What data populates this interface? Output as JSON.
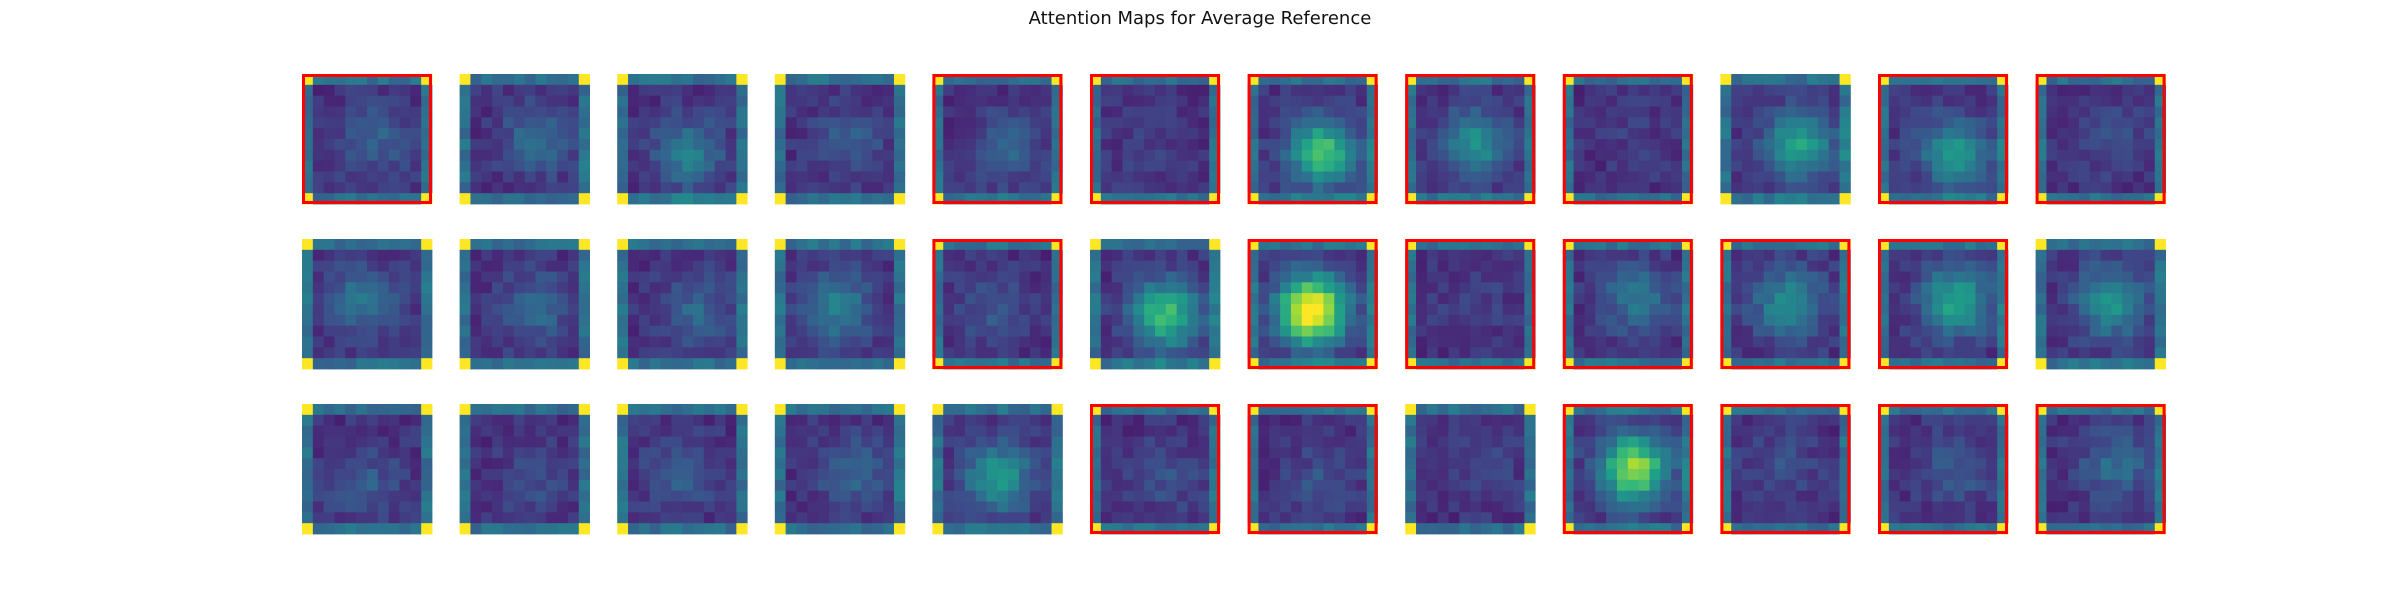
{
  "chart_data": {
    "type": "heatmap",
    "title": "Attention Maps for Average Reference",
    "rows": 3,
    "cols": 12,
    "colormap": "viridis",
    "grid": false,
    "highlight_color": "#ff0000",
    "highlighted": [
      [
        true,
        false,
        false,
        false,
        true,
        true,
        true,
        true,
        true,
        false,
        true,
        true
      ],
      [
        false,
        false,
        false,
        false,
        true,
        false,
        true,
        true,
        true,
        true,
        true,
        false
      ],
      [
        false,
        false,
        false,
        false,
        false,
        true,
        true,
        false,
        true,
        true,
        true,
        true
      ]
    ],
    "panel_peak": [
      [
        0.18,
        0.22,
        0.28,
        0.15,
        0.18,
        0.05,
        0.55,
        0.35,
        0.03,
        0.45,
        0.4,
        0.1
      ],
      [
        0.25,
        0.2,
        0.18,
        0.3,
        0.12,
        0.55,
        0.9,
        0.06,
        0.25,
        0.35,
        0.45,
        0.38
      ],
      [
        0.15,
        0.1,
        0.15,
        0.2,
        0.4,
        0.1,
        0.12,
        0.06,
        0.7,
        0.1,
        0.14,
        0.22
      ]
    ]
  }
}
